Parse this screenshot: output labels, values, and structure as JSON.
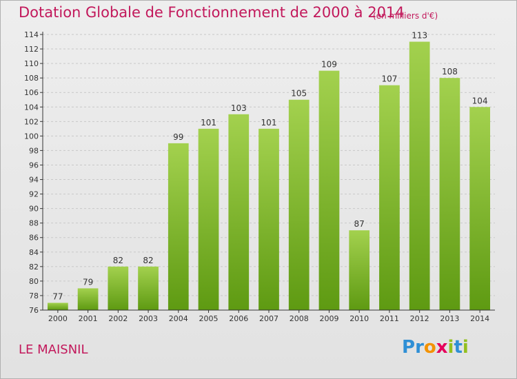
{
  "header": {
    "title": "Dotation Globale de Fonctionnement de 2000 à 2014",
    "subtitle": "(en milliers d'€)"
  },
  "footer": {
    "commune": "LE MAISNIL",
    "logo_text": "Proxiti",
    "logo_letters": [
      {
        "ch": "P",
        "color": "#2f8fd5"
      },
      {
        "ch": "r",
        "color": "#2f8fd5"
      },
      {
        "ch": "o",
        "color": "#f39200"
      },
      {
        "ch": "x",
        "color": "#e5005b"
      },
      {
        "ch": "i",
        "color": "#93c01f"
      },
      {
        "ch": "t",
        "color": "#2f8fd5"
      },
      {
        "ch": "i",
        "color": "#93c01f"
      }
    ]
  },
  "colors": {
    "title": "#c2185b",
    "bar_top": "#a3d14e",
    "bar_bottom": "#5e9a12",
    "axis": "#333333",
    "grid": "#c8c8c8"
  },
  "chart_data": {
    "type": "bar",
    "title": "Dotation Globale de Fonctionnement de 2000 à 2014",
    "subtitle": "(en milliers d'€)",
    "categories": [
      "2000",
      "2001",
      "2002",
      "2003",
      "2004",
      "2005",
      "2006",
      "2007",
      "2008",
      "2009",
      "2010",
      "2011",
      "2012",
      "2013",
      "2014"
    ],
    "values": [
      77,
      79,
      82,
      82,
      99,
      101,
      103,
      101,
      105,
      109,
      87,
      107,
      113,
      108,
      104
    ],
    "ylim": [
      76,
      114
    ],
    "yticks": [
      76,
      78,
      80,
      82,
      84,
      86,
      88,
      90,
      92,
      94,
      96,
      98,
      100,
      102,
      104,
      106,
      108,
      110,
      112,
      114
    ],
    "grid": true,
    "data_labels": true
  }
}
